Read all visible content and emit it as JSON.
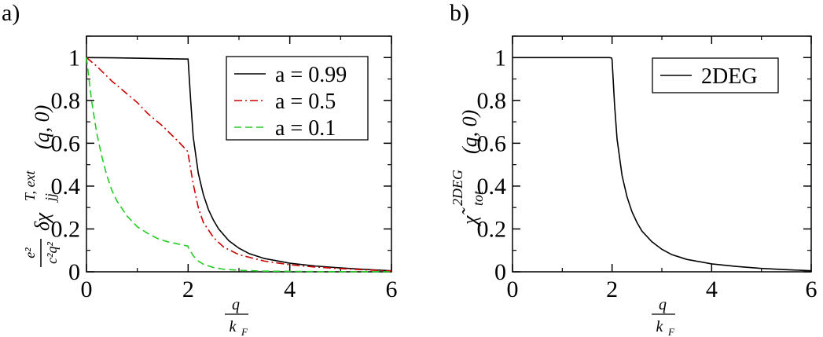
{
  "chart_data": [
    {
      "type": "line",
      "panel_label": "a)",
      "xlabel": {
        "num": "q",
        "den_base": "k",
        "den_sub": "F"
      },
      "ylabel": {
        "prefactor_num": "e²",
        "prefactor_den": "c²q²",
        "base": "δχ",
        "sup": "T, ext",
        "sub": "jj",
        "args": "(q, 0)"
      },
      "xlim": [
        0,
        6
      ],
      "ylim": [
        0,
        1.1
      ],
      "xticks": [
        0,
        2,
        4,
        6
      ],
      "yticks": [
        0,
        0.2,
        0.4,
        0.6,
        0.8,
        1
      ],
      "ytick_labels": [
        "0",
        "0.2",
        "0.4",
        "0.6",
        "0.8",
        "1"
      ],
      "xtick_labels": [
        "0",
        "2",
        "4",
        "6"
      ],
      "legend": "top-right",
      "series": [
        {
          "name": "a = 0.99",
          "color": "#000000",
          "dash": "solid",
          "x": [
            0,
            0.5,
            1.0,
            1.5,
            1.999,
            2.0,
            2.05,
            2.1,
            2.2,
            2.3,
            2.4,
            2.5,
            2.6,
            2.8,
            3.0,
            3.2,
            3.5,
            4.0,
            4.5,
            5.0,
            5.5,
            6.0
          ],
          "y": [
            1.0,
            0.999,
            0.997,
            0.995,
            0.993,
            0.99,
            0.8,
            0.63,
            0.46,
            0.36,
            0.29,
            0.24,
            0.2,
            0.145,
            0.11,
            0.085,
            0.062,
            0.04,
            0.027,
            0.018,
            0.011,
            0.005
          ]
        },
        {
          "name": "a = 0.5",
          "color": "#cc0000",
          "dash": "dashdot",
          "x": [
            0,
            0.05,
            0.2,
            0.5,
            0.8,
            1.0,
            1.2,
            1.5,
            1.8,
            1.999,
            2.0,
            2.05,
            2.1,
            2.2,
            2.3,
            2.5,
            2.7,
            3.0,
            3.5,
            4.0,
            4.5,
            5.0,
            5.5,
            6.0
          ],
          "y": [
            1.0,
            0.99,
            0.96,
            0.89,
            0.83,
            0.79,
            0.74,
            0.68,
            0.61,
            0.56,
            0.55,
            0.48,
            0.41,
            0.3,
            0.23,
            0.16,
            0.115,
            0.08,
            0.05,
            0.033,
            0.022,
            0.015,
            0.009,
            0.004
          ]
        },
        {
          "name": "a = 0.1",
          "color": "#22cc22",
          "dash": "dashed",
          "x": [
            0,
            0.05,
            0.1,
            0.2,
            0.3,
            0.4,
            0.5,
            0.6,
            0.8,
            1.0,
            1.2,
            1.4,
            1.6,
            1.8,
            1.999,
            2.0,
            2.05,
            2.1,
            2.2,
            2.3,
            2.5,
            2.7,
            3.0,
            3.5,
            4.0,
            4.5,
            5.0,
            6.0
          ],
          "y": [
            1.0,
            0.9,
            0.8,
            0.65,
            0.54,
            0.45,
            0.38,
            0.33,
            0.26,
            0.21,
            0.18,
            0.155,
            0.14,
            0.13,
            0.12,
            0.115,
            0.095,
            0.075,
            0.05,
            0.035,
            0.02,
            0.012,
            0.007,
            0.003,
            0.002,
            0.001,
            0.0005,
            0.0
          ]
        }
      ]
    },
    {
      "type": "line",
      "panel_label": "b)",
      "xlabel": {
        "num": "q",
        "den_base": "k",
        "den_sub": "F"
      },
      "ylabel": {
        "base": "χ̃",
        "sup": "2DEG",
        "sub": "tot",
        "args": "(q, 0)"
      },
      "xlim": [
        0,
        6
      ],
      "ylim": [
        0,
        1.1
      ],
      "xticks": [
        0,
        2,
        4,
        6
      ],
      "yticks": [
        0,
        0.2,
        0.4,
        0.6,
        0.8,
        1
      ],
      "ytick_labels": [
        "0",
        "0.2",
        "0.4",
        "0.6",
        "0.8",
        "1"
      ],
      "xtick_labels": [
        "0",
        "2",
        "4",
        "6"
      ],
      "legend": "top-right",
      "series": [
        {
          "name": "2DEG",
          "color": "#000000",
          "dash": "solid",
          "x": [
            0,
            1.95,
            1.99,
            2.0,
            2.05,
            2.1,
            2.2,
            2.3,
            2.4,
            2.5,
            2.6,
            2.8,
            3.0,
            3.2,
            3.5,
            4.0,
            4.5,
            5.0,
            5.5,
            6.0
          ],
          "y": [
            1.0,
            1.0,
            0.998,
            0.99,
            0.78,
            0.62,
            0.45,
            0.35,
            0.28,
            0.23,
            0.19,
            0.14,
            0.105,
            0.08,
            0.058,
            0.037,
            0.025,
            0.016,
            0.01,
            0.005
          ]
        }
      ]
    }
  ]
}
